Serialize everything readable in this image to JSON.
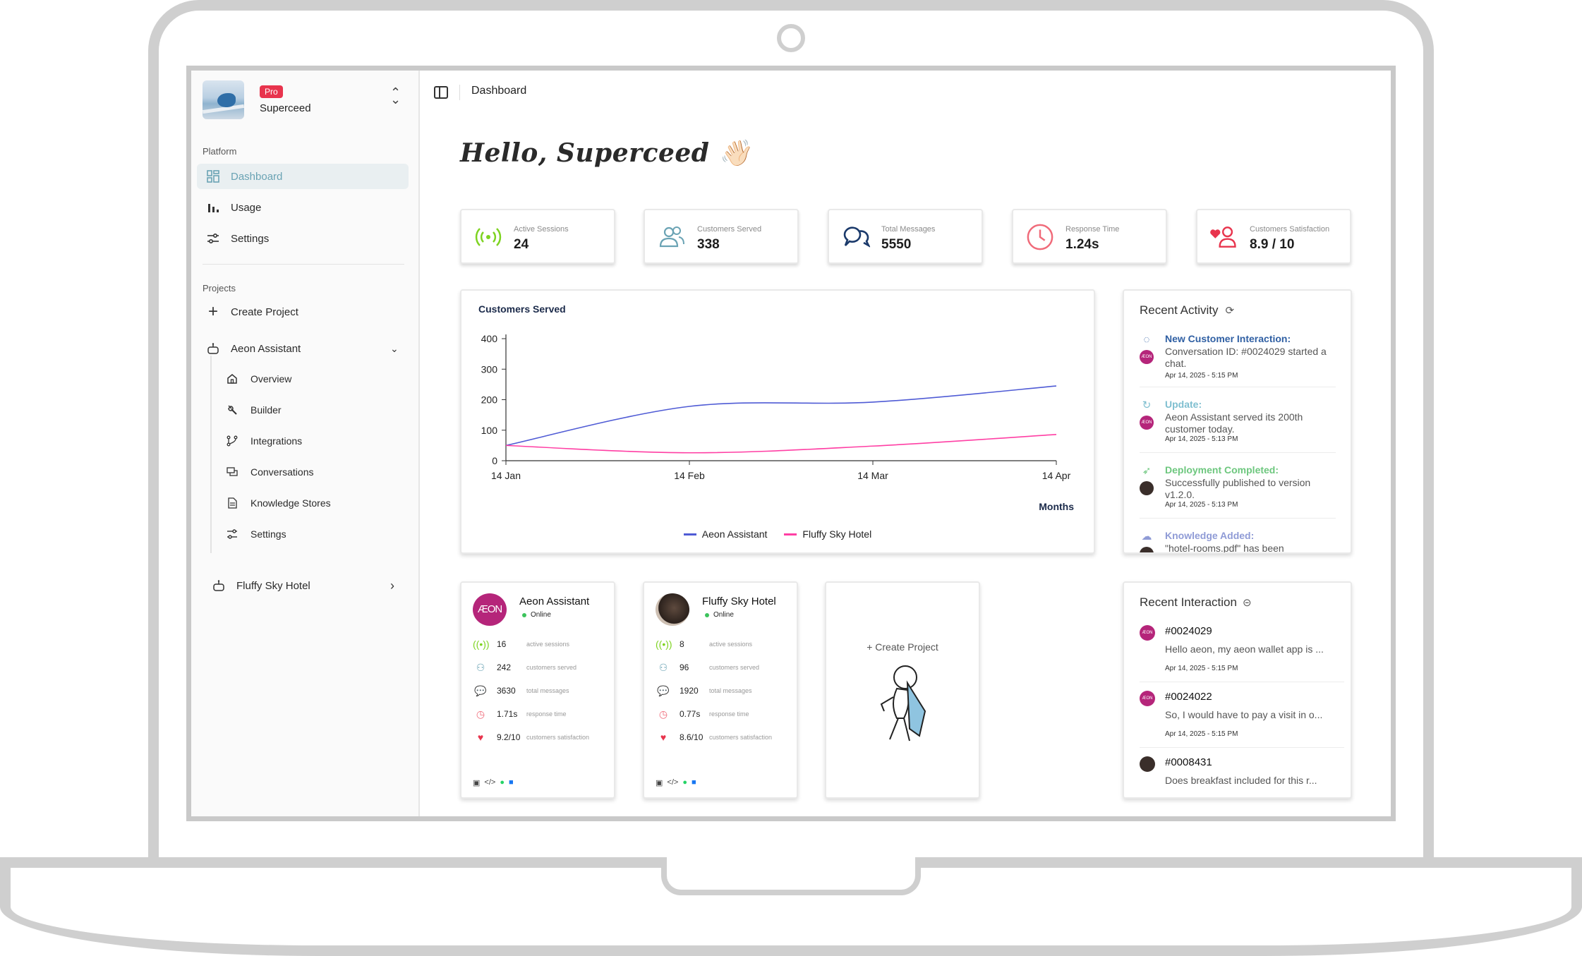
{
  "brand": {
    "name": "Superceed",
    "badge": "Pro"
  },
  "sidebar": {
    "platform_label": "Platform",
    "platform_items": [
      {
        "label": "Dashboard",
        "icon": "grid-icon",
        "active": true
      },
      {
        "label": "Usage",
        "icon": "bar-chart-icon"
      },
      {
        "label": "Settings",
        "icon": "sliders-icon"
      }
    ],
    "projects_label": "Projects",
    "create_project": "Create Project",
    "project_aeon": {
      "label": "Aeon Assistant",
      "sub_items": [
        {
          "label": "Overview",
          "icon": "home-icon"
        },
        {
          "label": "Builder",
          "icon": "wrench-icon"
        },
        {
          "label": "Integrations",
          "icon": "branch-icon"
        },
        {
          "label": "Conversations",
          "icon": "chat-icon"
        },
        {
          "label": "Knowledge Stores",
          "icon": "document-icon"
        },
        {
          "label": "Settings",
          "icon": "sliders-icon"
        }
      ]
    },
    "project_fluffy": {
      "label": "Fluffy Sky Hotel"
    }
  },
  "topbar": {
    "breadcrumb": "Dashboard"
  },
  "greeting": "Hello, Superceed 👋🏻",
  "stats": [
    {
      "label": "Active Sessions",
      "value": "24",
      "icon": "signal-icon",
      "color": "#7ed321"
    },
    {
      "label": "Customers Served",
      "value": "338",
      "icon": "users-icon",
      "color": "#6aa3b4"
    },
    {
      "label": "Total Messages",
      "value": "5550",
      "icon": "messages-icon",
      "color": "#1b3a6b"
    },
    {
      "label": "Response Time",
      "value": "1.24s",
      "icon": "clock-icon",
      "color": "#f06b7a"
    },
    {
      "label": "Customers Satisfaction",
      "value": "8.9 / 10",
      "icon": "heart-user-icon",
      "color": "#e8344d"
    }
  ],
  "chart_data": {
    "type": "line",
    "title": "Customers Served",
    "xlabel": "Months",
    "ylabel": "",
    "x": [
      "14 Jan",
      "14 Feb",
      "14 Mar",
      "14 Apr"
    ],
    "ylim": [
      0,
      400
    ],
    "yticks": [
      0,
      100,
      200,
      300,
      400
    ],
    "grid": false,
    "legend": "bottom",
    "series": [
      {
        "name": "Aeon Assistant",
        "color": "#4f5bd5",
        "values": [
          50,
          178,
          192,
          245
        ]
      },
      {
        "name": "Fluffy Sky Hotel",
        "color": "#ff3fa4",
        "values": [
          50,
          26,
          48,
          86
        ]
      }
    ]
  },
  "recent_activity": {
    "title": "Recent Activity",
    "items": [
      {
        "title": "New Customer Interaction:",
        "text": "Conversation ID: #0024029 started a chat.",
        "time": "Apr 14, 2025 - 5:15 PM",
        "color": "#2f5fa3",
        "icon": "chat-bubble-icon",
        "avatar": "ÆON"
      },
      {
        "title": "Update:",
        "text": "Aeon Assistant served its 200th customer today.",
        "time": "Apr 14, 2025 - 5:13 PM",
        "color": "#7fbfd0",
        "icon": "refresh-icon",
        "avatar": "ÆON"
      },
      {
        "title": "Deployment Completed:",
        "text": "Successfully published to version v1.2.0.",
        "time": "Apr 14, 2025 - 5:13 PM",
        "color": "#6dc77e",
        "icon": "rocket-icon",
        "avatar": ""
      },
      {
        "title": "Knowledge Added:",
        "text": "\"hotel-rooms.pdf\" has been",
        "time": "",
        "color": "#8f9bd6",
        "icon": "cloud-icon",
        "avatar": ""
      }
    ]
  },
  "projects": [
    {
      "name": "Aeon Assistant",
      "logo": "ÆON",
      "status": "Online",
      "rows": [
        {
          "value": "16",
          "label": "active sessions"
        },
        {
          "value": "242",
          "label": "customers served"
        },
        {
          "value": "3630",
          "label": "total messages"
        },
        {
          "value": "1.71s",
          "label": "response time"
        },
        {
          "value": "9.2/10",
          "label": "customers satisfaction"
        }
      ]
    },
    {
      "name": "Fluffy Sky Hotel",
      "logo": "",
      "status": "Online",
      "rows": [
        {
          "value": "8",
          "label": "active sessions"
        },
        {
          "value": "96",
          "label": "customers served"
        },
        {
          "value": "1920",
          "label": "total messages"
        },
        {
          "value": "0.77s",
          "label": "response time"
        },
        {
          "value": "8.6/10",
          "label": "customers satisfaction"
        }
      ]
    }
  ],
  "create_card": {
    "label": "+ Create Project"
  },
  "recent_interaction": {
    "title": "Recent Interaction",
    "items": [
      {
        "id": "#0024029",
        "message": "Hello aeon, my aeon wallet app is ...",
        "time": "Apr 14, 2025 - 5:15 PM",
        "avatar": "ÆON"
      },
      {
        "id": "#0024022",
        "message": "So, I would have to pay a visit in o...",
        "time": "Apr 14, 2025 - 5:15 PM",
        "avatar": "ÆON"
      },
      {
        "id": "#0008431",
        "message": "Does breakfast included for this r...",
        "time": "",
        "avatar": ""
      }
    ]
  }
}
